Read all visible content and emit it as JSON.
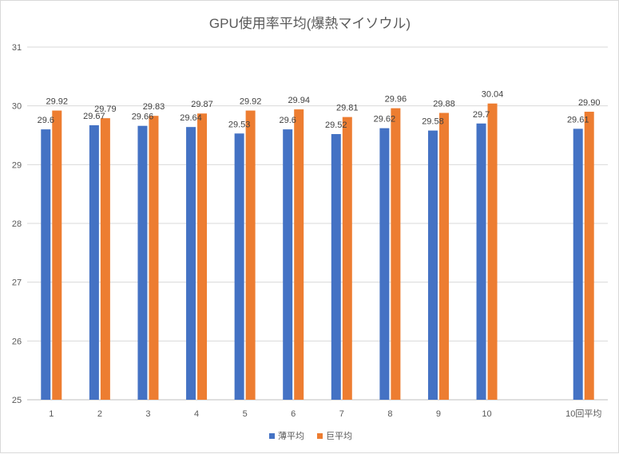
{
  "chart_data": {
    "type": "bar",
    "title": "GPU使用率平均(爆熱マイソウル)",
    "categories": [
      "1",
      "2",
      "3",
      "4",
      "5",
      "6",
      "7",
      "8",
      "9",
      "10",
      "",
      "10回平均"
    ],
    "series": [
      {
        "name": "薄平均",
        "color": "#4472c4",
        "values": [
          29.6,
          29.67,
          29.66,
          29.64,
          29.53,
          29.6,
          29.52,
          29.62,
          29.58,
          29.7,
          null,
          29.61
        ],
        "labels": [
          "29.6",
          "29.67",
          "29.66",
          "29.64",
          "29.53",
          "29.6",
          "29.52",
          "29.62",
          "29.58",
          "29.7",
          "",
          "29.61"
        ]
      },
      {
        "name": "巨平均",
        "color": "#ed7d31",
        "values": [
          29.92,
          29.79,
          29.83,
          29.87,
          29.92,
          29.94,
          29.81,
          29.96,
          29.88,
          30.04,
          null,
          29.9
        ],
        "labels": [
          "29.92",
          "29.79",
          "29.83",
          "29.87",
          "29.92",
          "29.94",
          "29.81",
          "29.96",
          "29.88",
          "30.04",
          "",
          "29.90"
        ]
      }
    ],
    "ylim": [
      25,
      31
    ],
    "yticks": [
      "25",
      "26",
      "27",
      "28",
      "29",
      "30",
      "31"
    ],
    "xlabel": "",
    "ylabel": "",
    "grid": true,
    "legend": "bottom"
  }
}
